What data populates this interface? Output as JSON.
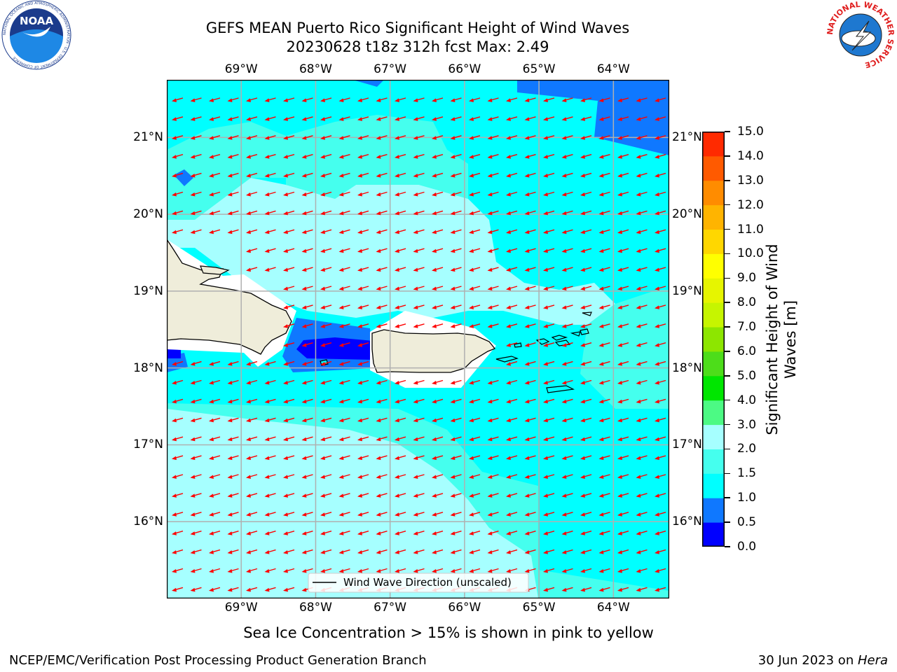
{
  "header": {
    "title_line1": "GEFS MEAN Puerto Rico Significant Height of Wind Waves",
    "title_line2": "20230628 t18z 312h fcst   Max: 2.49"
  },
  "logos": {
    "left_text": "NOAA",
    "left_ring_text": "NATIONAL OCEANIC AND ATMOSPHERIC ADMINISTRATION · U.S. DEPARTMENT OF COMMERCE",
    "right_ring_text": "NATIONAL WEATHER SERVICE"
  },
  "map": {
    "lon_range": [
      -70.0,
      -63.25
    ],
    "lat_range": [
      15.0,
      21.75
    ],
    "lon_ticks": [
      {
        "value": -69,
        "label": "69°W"
      },
      {
        "value": -68,
        "label": "68°W"
      },
      {
        "value": -67,
        "label": "67°W"
      },
      {
        "value": -66,
        "label": "66°W"
      },
      {
        "value": -65,
        "label": "65°W"
      },
      {
        "value": -64,
        "label": "64°W"
      }
    ],
    "lat_ticks": [
      {
        "value": 21,
        "label": "21°N"
      },
      {
        "value": 20,
        "label": "20°N"
      },
      {
        "value": 19,
        "label": "19°N"
      },
      {
        "value": 18,
        "label": "18°N"
      },
      {
        "value": 17,
        "label": "17°N"
      },
      {
        "value": 16,
        "label": "16°N"
      }
    ],
    "wave_direction": "from east-northeast",
    "legend_label": "Wind Wave Direction (unscaled)",
    "colors": {
      "land": "#efedda",
      "coast": "#000000",
      "arrow": "#ff0000",
      "grid": "#b0b0b0"
    }
  },
  "colorbar": {
    "label": "Significant Height of Wind Waves [m]",
    "levels": [
      "0.0",
      "0.5",
      "1.0",
      "1.5",
      "2.0",
      "3.0",
      "4.0",
      "5.0",
      "6.0",
      "7.0",
      "8.0",
      "9.0",
      "10.0",
      "11.0",
      "12.0",
      "13.0",
      "14.0",
      "15.0"
    ],
    "colors": [
      "#0000ff",
      "#0f78ff",
      "#00ffff",
      "#45ffee",
      "#a6ffff",
      "#4cfa84",
      "#00e600",
      "#4ddd1a",
      "#8de600",
      "#c6f500",
      "#e6f500",
      "#ffff00",
      "#ffd700",
      "#ffb400",
      "#ff8c00",
      "#ff5a00",
      "#ff2a00"
    ]
  },
  "note": "Sea Ice Concentration > 15% is shown in pink to yellow",
  "footer": {
    "left": "NCEP/EMC/Verification Post Processing Product Generation Branch",
    "right_date": "30 Jun 2023 on ",
    "right_host": "Hera"
  }
}
